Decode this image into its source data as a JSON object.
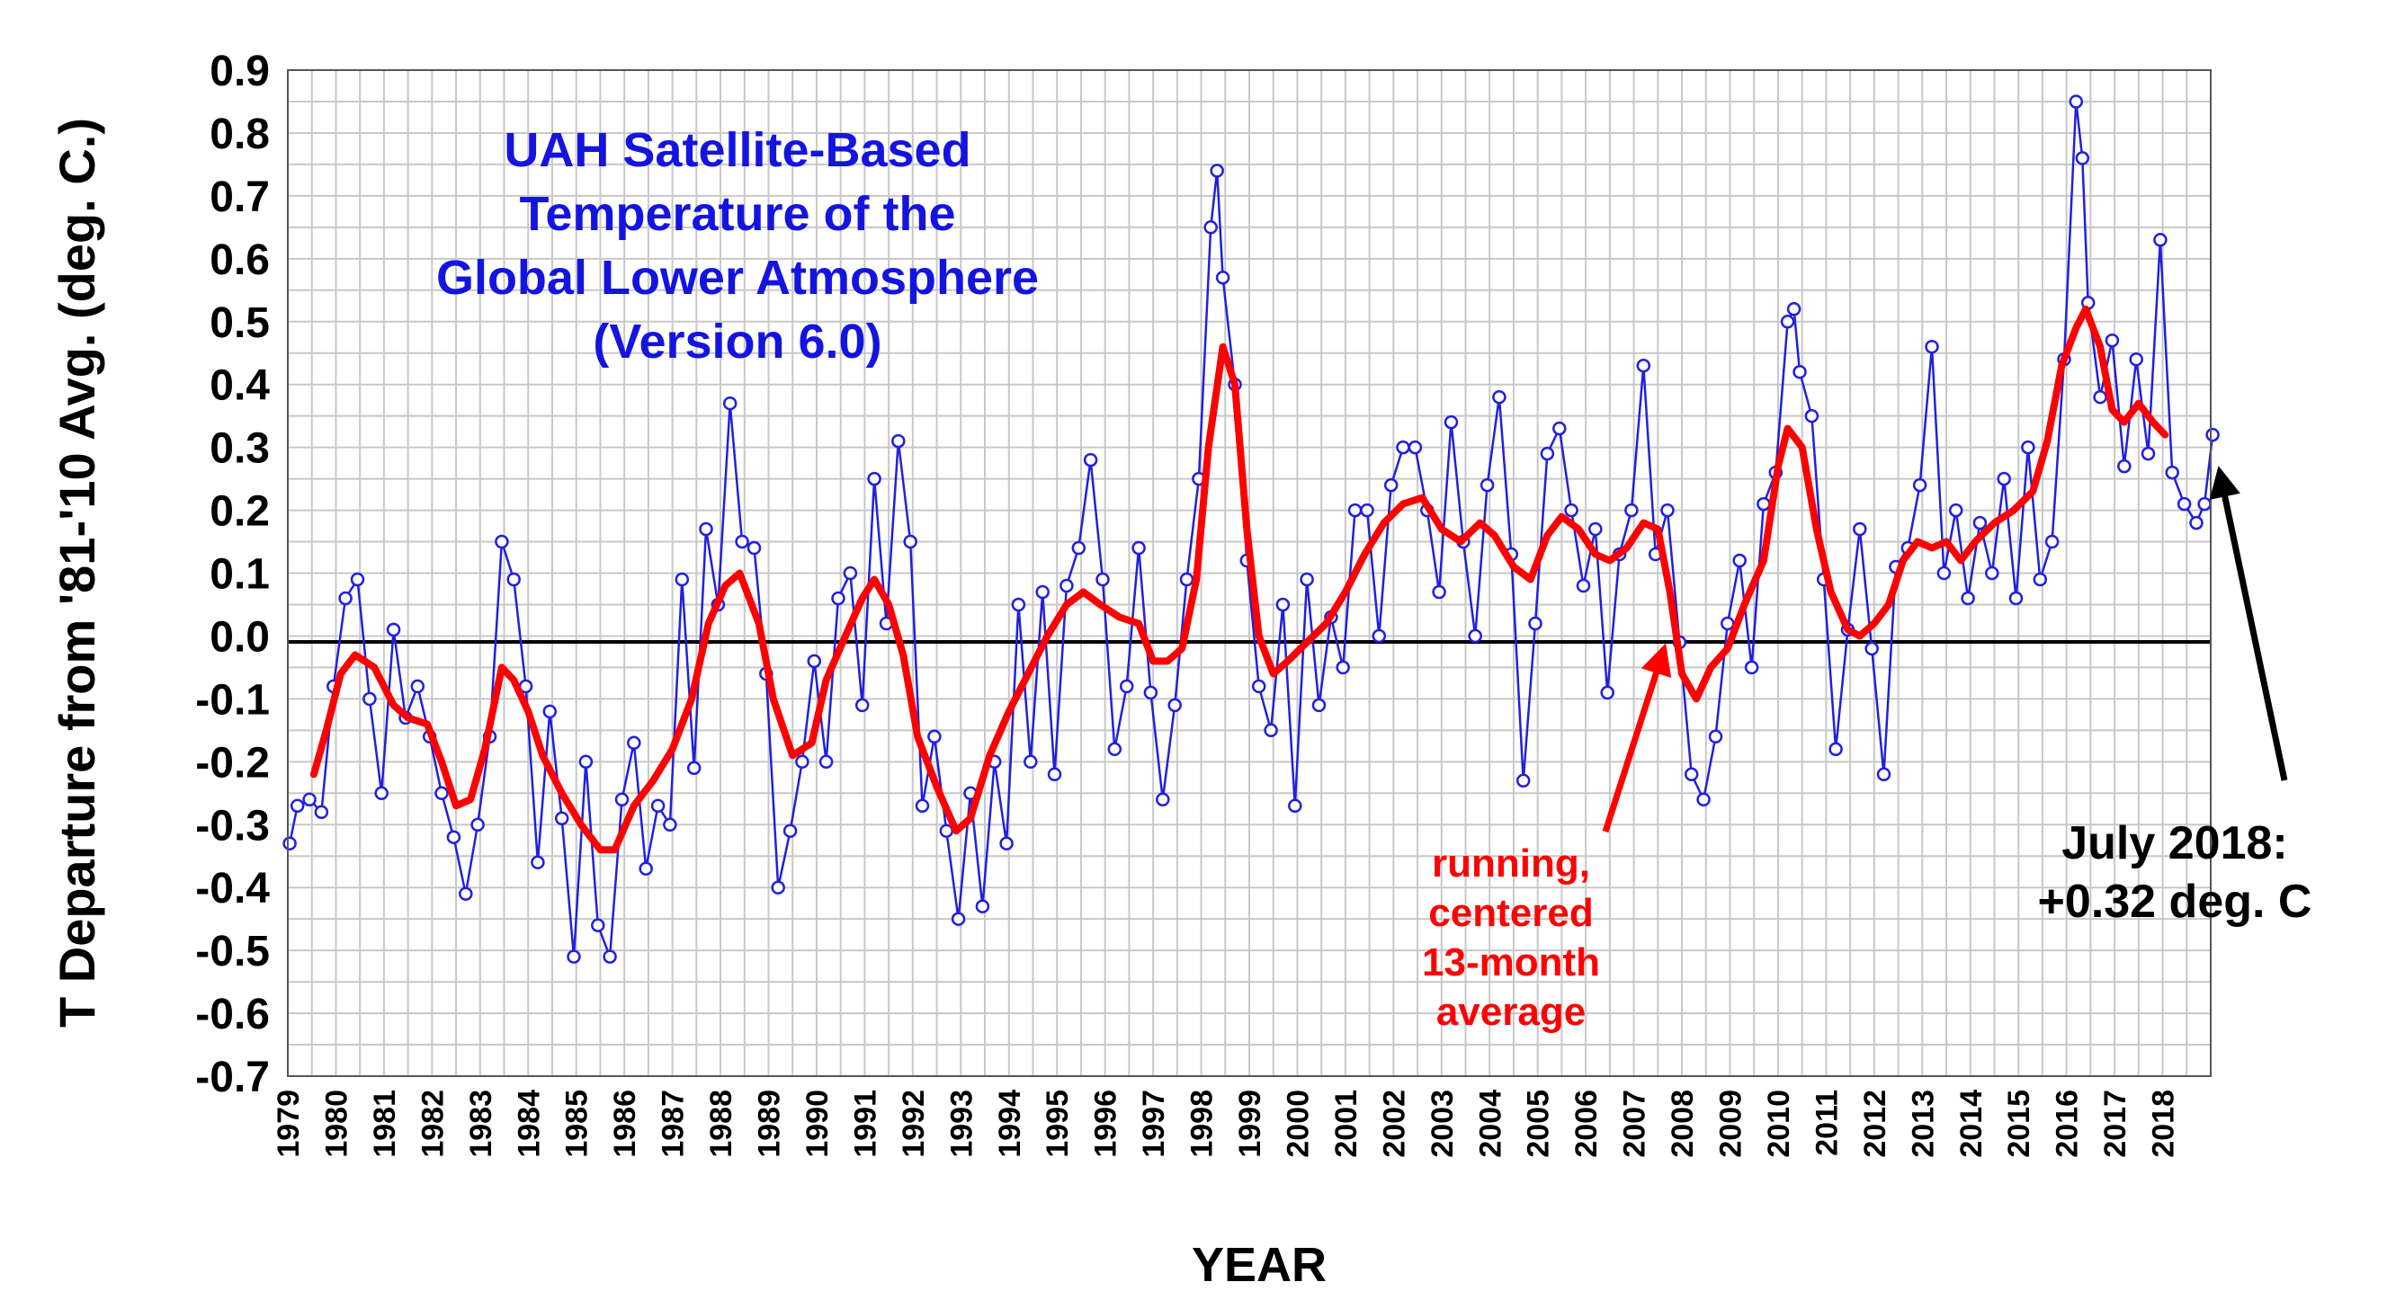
{
  "chart_data": {
    "type": "line",
    "title_lines": [
      "UAH Satellite-Based",
      "Temperature of the",
      "Global Lower Atmosphere",
      "(Version 6.0)"
    ],
    "xlabel": "YEAR",
    "ylabel": "T Departure from '81-'10 Avg. (deg. C.)",
    "ylim": [
      -0.7,
      0.9
    ],
    "xlim": [
      1979.0,
      2019.0
    ],
    "grid": true,
    "y_ticks": [
      "0.9",
      "0.8",
      "0.7",
      "0.6",
      "0.5",
      "0.4",
      "0.3",
      "0.2",
      "0.1",
      "0.0",
      "-0.1",
      "-0.2",
      "-0.3",
      "-0.4",
      "-0.5",
      "-0.6",
      "-0.7"
    ],
    "x_ticks": [
      "1979",
      "1980",
      "1981",
      "1982",
      "1983",
      "1984",
      "1985",
      "1986",
      "1987",
      "1988",
      "1989",
      "1990",
      "1991",
      "1992",
      "1993",
      "1994",
      "1995",
      "1996",
      "1997",
      "1998",
      "1999",
      "2000",
      "2001",
      "2002",
      "2003",
      "2004",
      "2005",
      "2006",
      "2007",
      "2008",
      "2009",
      "2010",
      "2011",
      "2012",
      "2013",
      "2014",
      "2015",
      "2016",
      "2017",
      "2018"
    ],
    "series": [
      {
        "color": "#2020e0",
        "style": "line-with-circle-markers",
        "points": [
          [
            1979.04,
            -0.33
          ],
          [
            1979.2,
            -0.27
          ],
          [
            1979.45,
            -0.26
          ],
          [
            1979.7,
            -0.28
          ],
          [
            1979.95,
            -0.08
          ],
          [
            1980.2,
            0.06
          ],
          [
            1980.45,
            0.09
          ],
          [
            1980.7,
            -0.1
          ],
          [
            1980.95,
            -0.25
          ],
          [
            1981.2,
            0.01
          ],
          [
            1981.45,
            -0.13
          ],
          [
            1981.7,
            -0.08
          ],
          [
            1981.95,
            -0.16
          ],
          [
            1982.2,
            -0.25
          ],
          [
            1982.45,
            -0.32
          ],
          [
            1982.7,
            -0.41
          ],
          [
            1982.95,
            -0.3
          ],
          [
            1983.2,
            -0.16
          ],
          [
            1983.45,
            0.15
          ],
          [
            1983.7,
            0.09
          ],
          [
            1983.95,
            -0.08
          ],
          [
            1984.2,
            -0.36
          ],
          [
            1984.45,
            -0.12
          ],
          [
            1984.7,
            -0.29
          ],
          [
            1984.95,
            -0.51
          ],
          [
            1985.2,
            -0.2
          ],
          [
            1985.45,
            -0.46
          ],
          [
            1985.7,
            -0.51
          ],
          [
            1985.95,
            -0.26
          ],
          [
            1986.2,
            -0.17
          ],
          [
            1986.45,
            -0.37
          ],
          [
            1986.7,
            -0.27
          ],
          [
            1986.95,
            -0.3
          ],
          [
            1987.2,
            0.09
          ],
          [
            1987.45,
            -0.21
          ],
          [
            1987.7,
            0.17
          ],
          [
            1987.95,
            0.05
          ],
          [
            1988.2,
            0.37
          ],
          [
            1988.45,
            0.15
          ],
          [
            1988.7,
            0.14
          ],
          [
            1988.95,
            -0.06
          ],
          [
            1989.2,
            -0.4
          ],
          [
            1989.45,
            -0.31
          ],
          [
            1989.7,
            -0.2
          ],
          [
            1989.95,
            -0.04
          ],
          [
            1990.2,
            -0.2
          ],
          [
            1990.45,
            0.06
          ],
          [
            1990.7,
            0.1
          ],
          [
            1990.95,
            -0.11
          ],
          [
            1991.2,
            0.25
          ],
          [
            1991.45,
            0.02
          ],
          [
            1991.7,
            0.31
          ],
          [
            1991.95,
            0.15
          ],
          [
            1992.2,
            -0.27
          ],
          [
            1992.45,
            -0.16
          ],
          [
            1992.7,
            -0.31
          ],
          [
            1992.95,
            -0.45
          ],
          [
            1993.2,
            -0.25
          ],
          [
            1993.45,
            -0.43
          ],
          [
            1993.7,
            -0.2
          ],
          [
            1993.95,
            -0.33
          ],
          [
            1994.2,
            0.05
          ],
          [
            1994.45,
            -0.2
          ],
          [
            1994.7,
            0.07
          ],
          [
            1994.95,
            -0.22
          ],
          [
            1995.2,
            0.08
          ],
          [
            1995.45,
            0.14
          ],
          [
            1995.7,
            0.28
          ],
          [
            1995.95,
            0.09
          ],
          [
            1996.2,
            -0.18
          ],
          [
            1996.45,
            -0.08
          ],
          [
            1996.7,
            0.14
          ],
          [
            1996.95,
            -0.09
          ],
          [
            1997.2,
            -0.26
          ],
          [
            1997.45,
            -0.11
          ],
          [
            1997.7,
            0.09
          ],
          [
            1997.95,
            0.25
          ],
          [
            1998.2,
            0.65
          ],
          [
            1998.33,
            0.74
          ],
          [
            1998.45,
            0.57
          ],
          [
            1998.7,
            0.4
          ],
          [
            1998.95,
            0.12
          ],
          [
            1999.2,
            -0.08
          ],
          [
            1999.45,
            -0.15
          ],
          [
            1999.7,
            0.05
          ],
          [
            1999.95,
            -0.27
          ],
          [
            2000.2,
            0.09
          ],
          [
            2000.45,
            -0.11
          ],
          [
            2000.7,
            0.03
          ],
          [
            2000.95,
            -0.05
          ],
          [
            2001.2,
            0.2
          ],
          [
            2001.45,
            0.2
          ],
          [
            2001.7,
            0.0
          ],
          [
            2001.95,
            0.24
          ],
          [
            2002.2,
            0.3
          ],
          [
            2002.45,
            0.3
          ],
          [
            2002.7,
            0.2
          ],
          [
            2002.95,
            0.07
          ],
          [
            2003.2,
            0.34
          ],
          [
            2003.45,
            0.15
          ],
          [
            2003.7,
            0.0
          ],
          [
            2003.95,
            0.24
          ],
          [
            2004.2,
            0.38
          ],
          [
            2004.45,
            0.13
          ],
          [
            2004.7,
            -0.23
          ],
          [
            2004.95,
            0.02
          ],
          [
            2005.2,
            0.29
          ],
          [
            2005.45,
            0.33
          ],
          [
            2005.7,
            0.2
          ],
          [
            2005.95,
            0.08
          ],
          [
            2006.2,
            0.17
          ],
          [
            2006.45,
            -0.09
          ],
          [
            2006.7,
            0.13
          ],
          [
            2006.95,
            0.2
          ],
          [
            2007.2,
            0.43
          ],
          [
            2007.45,
            0.13
          ],
          [
            2007.7,
            0.2
          ],
          [
            2007.95,
            -0.01
          ],
          [
            2008.2,
            -0.22
          ],
          [
            2008.45,
            -0.26
          ],
          [
            2008.7,
            -0.16
          ],
          [
            2008.95,
            0.02
          ],
          [
            2009.2,
            0.12
          ],
          [
            2009.45,
            -0.05
          ],
          [
            2009.7,
            0.21
          ],
          [
            2009.95,
            0.26
          ],
          [
            2010.2,
            0.5
          ],
          [
            2010.33,
            0.52
          ],
          [
            2010.45,
            0.42
          ],
          [
            2010.7,
            0.35
          ],
          [
            2010.95,
            0.09
          ],
          [
            2011.2,
            -0.18
          ],
          [
            2011.45,
            0.01
          ],
          [
            2011.7,
            0.17
          ],
          [
            2011.95,
            -0.02
          ],
          [
            2012.2,
            -0.22
          ],
          [
            2012.45,
            0.11
          ],
          [
            2012.7,
            0.14
          ],
          [
            2012.95,
            0.24
          ],
          [
            2013.2,
            0.46
          ],
          [
            2013.45,
            0.1
          ],
          [
            2013.7,
            0.2
          ],
          [
            2013.95,
            0.06
          ],
          [
            2014.2,
            0.18
          ],
          [
            2014.45,
            0.1
          ],
          [
            2014.7,
            0.25
          ],
          [
            2014.95,
            0.06
          ],
          [
            2015.2,
            0.3
          ],
          [
            2015.45,
            0.09
          ],
          [
            2015.7,
            0.15
          ],
          [
            2015.95,
            0.44
          ],
          [
            2016.2,
            0.85
          ],
          [
            2016.33,
            0.76
          ],
          [
            2016.45,
            0.53
          ],
          [
            2016.7,
            0.38
          ],
          [
            2016.95,
            0.47
          ],
          [
            2017.2,
            0.27
          ],
          [
            2017.45,
            0.44
          ],
          [
            2017.7,
            0.29
          ],
          [
            2017.95,
            0.63
          ],
          [
            2018.2,
            0.26
          ],
          [
            2018.45,
            0.21
          ],
          [
            2018.7,
            0.18
          ],
          [
            2018.87,
            0.21
          ],
          [
            2019.04,
            0.32
          ]
        ]
      },
      {
        "color": "#ff0000",
        "style": "thick-line",
        "points": [
          [
            1979.54,
            -0.22
          ],
          [
            1979.8,
            -0.15
          ],
          [
            1980.1,
            -0.06
          ],
          [
            1980.4,
            -0.03
          ],
          [
            1980.8,
            -0.05
          ],
          [
            1981.2,
            -0.11
          ],
          [
            1981.5,
            -0.13
          ],
          [
            1981.9,
            -0.14
          ],
          [
            1982.2,
            -0.2
          ],
          [
            1982.5,
            -0.27
          ],
          [
            1982.8,
            -0.26
          ],
          [
            1983.1,
            -0.18
          ],
          [
            1983.45,
            -0.05
          ],
          [
            1983.7,
            -0.07
          ],
          [
            1984.0,
            -0.12
          ],
          [
            1984.3,
            -0.19
          ],
          [
            1984.7,
            -0.25
          ],
          [
            1985.1,
            -0.3
          ],
          [
            1985.5,
            -0.34
          ],
          [
            1985.8,
            -0.34
          ],
          [
            1986.2,
            -0.27
          ],
          [
            1986.6,
            -0.23
          ],
          [
            1987.0,
            -0.18
          ],
          [
            1987.4,
            -0.1
          ],
          [
            1987.75,
            0.02
          ],
          [
            1988.1,
            0.08
          ],
          [
            1988.4,
            0.1
          ],
          [
            1988.8,
            0.02
          ],
          [
            1989.1,
            -0.1
          ],
          [
            1989.5,
            -0.19
          ],
          [
            1989.9,
            -0.17
          ],
          [
            1990.2,
            -0.07
          ],
          [
            1990.6,
            0.0
          ],
          [
            1990.95,
            0.06
          ],
          [
            1991.2,
            0.09
          ],
          [
            1991.5,
            0.05
          ],
          [
            1991.8,
            -0.03
          ],
          [
            1992.1,
            -0.16
          ],
          [
            1992.5,
            -0.24
          ],
          [
            1992.9,
            -0.31
          ],
          [
            1993.2,
            -0.29
          ],
          [
            1993.6,
            -0.19
          ],
          [
            1994.0,
            -0.12
          ],
          [
            1994.4,
            -0.06
          ],
          [
            1994.8,
            0.0
          ],
          [
            1995.2,
            0.05
          ],
          [
            1995.55,
            0.07
          ],
          [
            1995.9,
            0.05
          ],
          [
            1996.3,
            0.03
          ],
          [
            1996.7,
            0.02
          ],
          [
            1997.0,
            -0.04
          ],
          [
            1997.3,
            -0.04
          ],
          [
            1997.6,
            -0.02
          ],
          [
            1997.9,
            0.09
          ],
          [
            1998.15,
            0.3
          ],
          [
            1998.45,
            0.46
          ],
          [
            1998.7,
            0.4
          ],
          [
            1998.95,
            0.17
          ],
          [
            1999.2,
            0.0
          ],
          [
            1999.5,
            -0.06
          ],
          [
            1999.8,
            -0.04
          ],
          [
            2000.2,
            -0.01
          ],
          [
            2000.6,
            0.02
          ],
          [
            2001.0,
            0.07
          ],
          [
            2001.4,
            0.13
          ],
          [
            2001.8,
            0.18
          ],
          [
            2002.2,
            0.21
          ],
          [
            2002.6,
            0.22
          ],
          [
            2003.0,
            0.17
          ],
          [
            2003.4,
            0.15
          ],
          [
            2003.8,
            0.18
          ],
          [
            2004.1,
            0.16
          ],
          [
            2004.5,
            0.11
          ],
          [
            2004.85,
            0.09
          ],
          [
            2005.2,
            0.16
          ],
          [
            2005.5,
            0.19
          ],
          [
            2005.85,
            0.17
          ],
          [
            2006.2,
            0.13
          ],
          [
            2006.5,
            0.12
          ],
          [
            2006.85,
            0.14
          ],
          [
            2007.2,
            0.18
          ],
          [
            2007.5,
            0.17
          ],
          [
            2007.75,
            0.07
          ],
          [
            2008.0,
            -0.06
          ],
          [
            2008.3,
            -0.1
          ],
          [
            2008.6,
            -0.05
          ],
          [
            2008.95,
            -0.02
          ],
          [
            2009.3,
            0.05
          ],
          [
            2009.7,
            0.12
          ],
          [
            2010.0,
            0.27
          ],
          [
            2010.2,
            0.33
          ],
          [
            2010.5,
            0.3
          ],
          [
            2010.8,
            0.17
          ],
          [
            2011.1,
            0.07
          ],
          [
            2011.45,
            0.01
          ],
          [
            2011.7,
            0.0
          ],
          [
            2012.0,
            0.02
          ],
          [
            2012.3,
            0.05
          ],
          [
            2012.6,
            0.12
          ],
          [
            2012.9,
            0.15
          ],
          [
            2013.2,
            0.14
          ],
          [
            2013.5,
            0.15
          ],
          [
            2013.8,
            0.12
          ],
          [
            2014.1,
            0.15
          ],
          [
            2014.5,
            0.18
          ],
          [
            2014.9,
            0.2
          ],
          [
            2015.3,
            0.23
          ],
          [
            2015.6,
            0.31
          ],
          [
            2015.9,
            0.43
          ],
          [
            2016.2,
            0.49
          ],
          [
            2016.4,
            0.52
          ],
          [
            2016.7,
            0.46
          ],
          [
            2016.95,
            0.36
          ],
          [
            2017.2,
            0.34
          ],
          [
            2017.5,
            0.37
          ],
          [
            2017.8,
            0.34
          ],
          [
            2018.05,
            0.32
          ]
        ]
      }
    ],
    "annotations": [
      {
        "lines": [
          "running,",
          "centered",
          "13-month",
          "average"
        ],
        "color": "#ff0000"
      },
      {
        "lines": [
          "July 2018:",
          "+0.32 deg. C"
        ],
        "color": "#000000"
      }
    ]
  }
}
